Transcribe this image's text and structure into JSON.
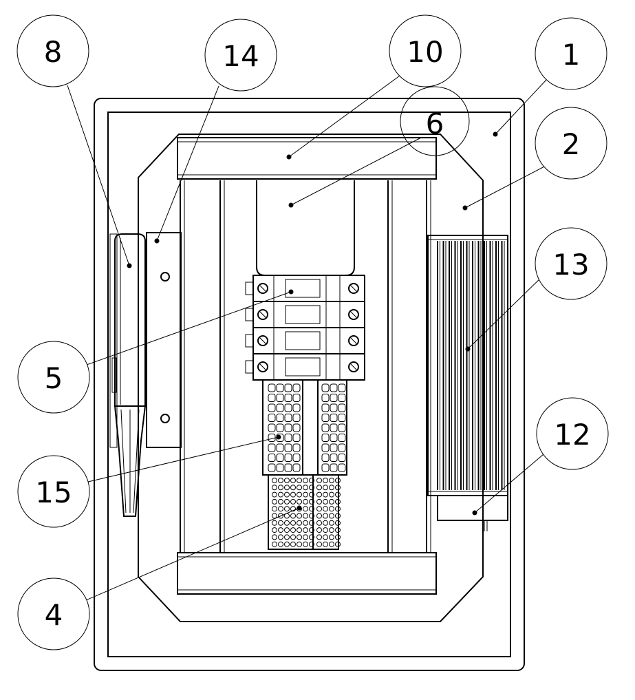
{
  "callouts": [
    {
      "id": "8",
      "label": "8"
    },
    {
      "id": "14",
      "label": "14"
    },
    {
      "id": "10",
      "label": "10"
    },
    {
      "id": "6",
      "label": "6"
    },
    {
      "id": "1",
      "label": "1"
    },
    {
      "id": "2",
      "label": "2"
    },
    {
      "id": "13",
      "label": "13"
    },
    {
      "id": "12",
      "label": "12"
    },
    {
      "id": "5",
      "label": "5"
    },
    {
      "id": "15",
      "label": "15"
    },
    {
      "id": "4",
      "label": "4"
    }
  ],
  "colors": {
    "line": "#000000",
    "background": "#ffffff"
  }
}
